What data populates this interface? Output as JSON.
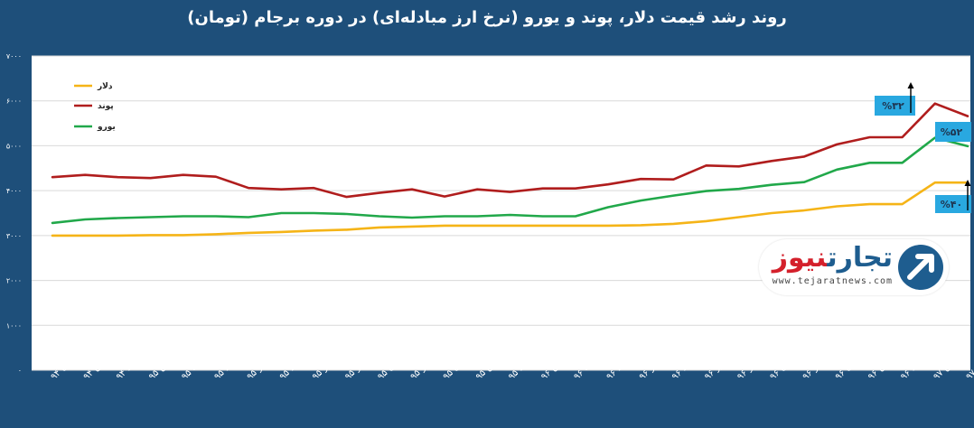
{
  "title": "روند رشد قیمت دلار، پوند و یورو (نرخ ارز مبادله‌ای) در دوره برجام (تومان)",
  "logo": {
    "name_part1": "تجارت",
    "name_part2": "نیوز",
    "url": "www.tejaratnews.com",
    "colors": {
      "blue": "#1e5d8f",
      "red": "#d4202b"
    }
  },
  "colors": {
    "background": "#1e4f7a",
    "plot_background": "#ffffff",
    "dollar": "#f5b417",
    "pound": "#b01d1d",
    "euro": "#21a84a",
    "callout": "#29a8e0"
  },
  "chart_data": {
    "type": "line",
    "title": "روند رشد قیمت دلار، پوند و یورو (نرخ ارز مبادله‌ای) در دوره برجام (تومان)",
    "xlabel": "",
    "ylabel": "",
    "ylim": [
      0,
      7000
    ],
    "yticks": [
      "۰",
      "۱۰۰۰",
      "۲۰۰۰",
      "۳۰۰۰",
      "۴۰۰۰",
      "۵۰۰۰",
      "۶۰۰۰",
      "۷۰۰۰"
    ],
    "grid": true,
    "legend_position": "top-left",
    "categories": [
      "دی ۹۴",
      "بهمن ۹۴",
      "اسفند ۹۴",
      "فروردین ۹۵",
      "اردیبهشت ۹۵",
      "خرداد ۹۵",
      "تیر ۹۵",
      "مرداد ۹۵",
      "شهریور ۹۵",
      "مهر ۹۵",
      "آبان ۹۵",
      "آذر ۹۵",
      "دی ۹۵",
      "بهمن ۹۵",
      "اسفند ۹۵",
      "فروردین ۹۶",
      "اردیبهشت ۹۶",
      "خرداد ۹۶",
      "تیر ۹۶",
      "مرداد ۹۶",
      "شهریور ۹۶",
      "مهر ۹۶",
      "آبان ۹۶",
      "آذر ۹۶",
      "دی ۹۶",
      "بهمن ۹۶",
      "اسفند ۹۶",
      "فروردین ۹۷",
      "۱۶ اردیبهشت ۹۷"
    ],
    "series": [
      {
        "name": "دلار",
        "color": "#f5b417",
        "values": [
          3000,
          3000,
          3000,
          3010,
          3010,
          3030,
          3060,
          3080,
          3110,
          3130,
          3180,
          3200,
          3220,
          3220,
          3220,
          3220,
          3220,
          3220,
          3230,
          3260,
          3320,
          3410,
          3500,
          3560,
          3650,
          3700,
          3700,
          4180,
          4180
        ]
      },
      {
        "name": "پوند",
        "color": "#b01d1d",
        "values": [
          4300,
          4350,
          4300,
          4280,
          4350,
          4310,
          4060,
          4030,
          4060,
          3860,
          3950,
          4030,
          3870,
          4030,
          3970,
          4050,
          4050,
          4140,
          4260,
          4250,
          4560,
          4540,
          4660,
          4760,
          5030,
          5190,
          5190,
          5940,
          5660
        ]
      },
      {
        "name": "یورو",
        "color": "#21a84a",
        "values": [
          3280,
          3360,
          3390,
          3410,
          3430,
          3430,
          3410,
          3500,
          3500,
          3480,
          3430,
          3400,
          3430,
          3430,
          3460,
          3430,
          3430,
          3630,
          3780,
          3890,
          3990,
          4040,
          4130,
          4190,
          4470,
          4620,
          4620,
          5180,
          4990
        ]
      }
    ],
    "annotations": [
      "%۳۲",
      "%۵۲",
      "%۴۰"
    ]
  }
}
